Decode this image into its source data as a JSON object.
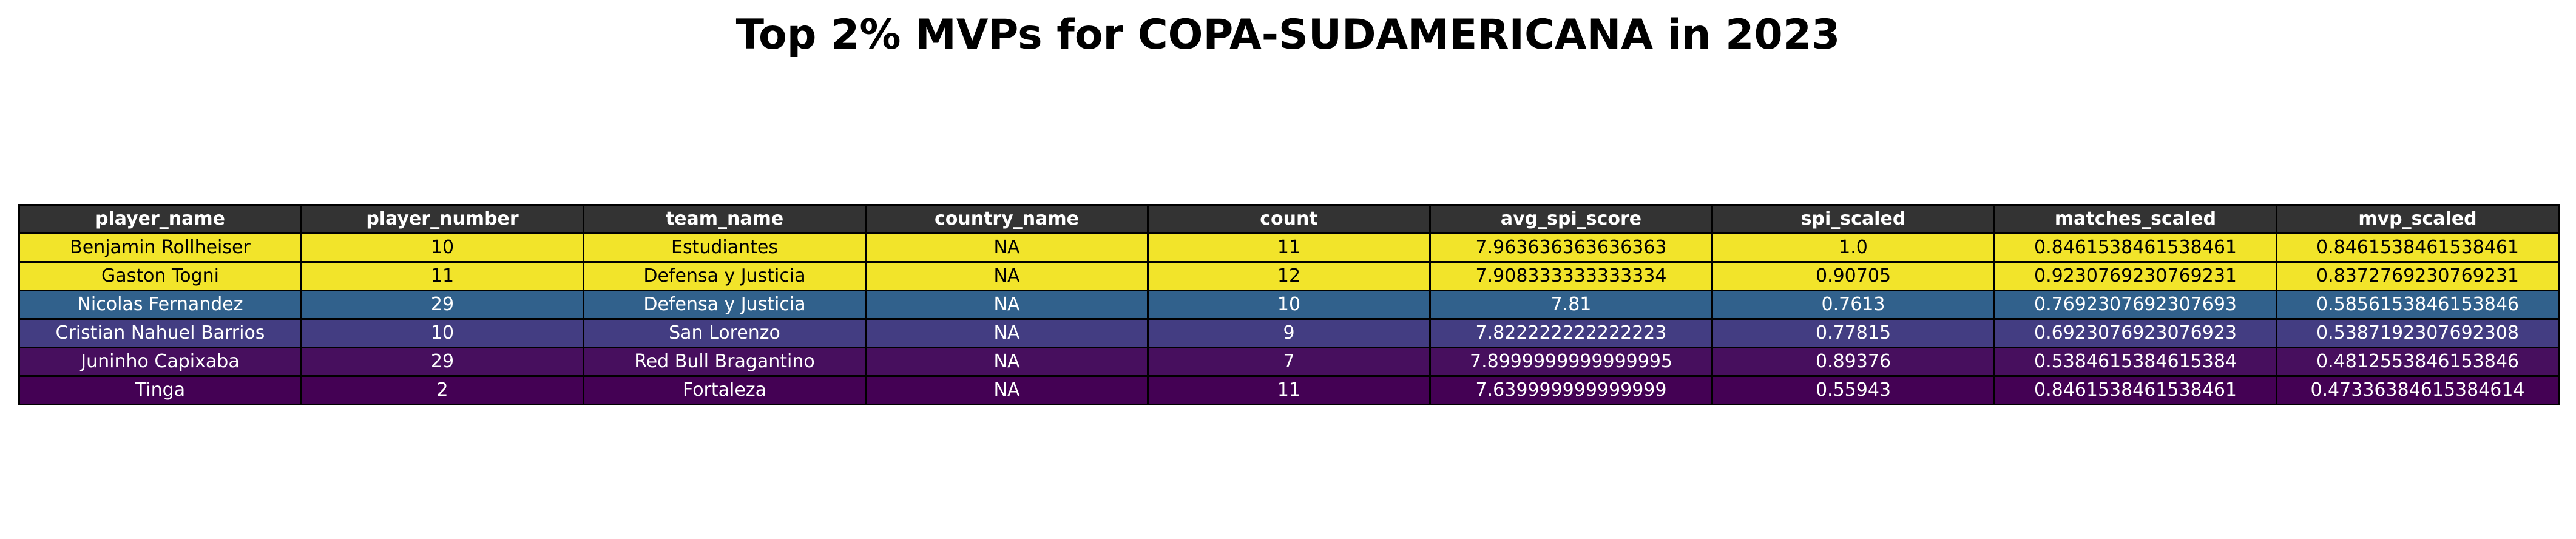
{
  "title": "Top 2% MVPs for COPA-SUDAMERICANA in 2023",
  "chart_data": {
    "type": "table",
    "title": "Top 2% MVPs for COPA-SUDAMERICANA in 2023",
    "columns": [
      "player_name",
      "player_number",
      "team_name",
      "country_name",
      "count",
      "avg_spi_score",
      "spi_scaled",
      "matches_scaled",
      "mvp_scaled"
    ],
    "rows": [
      [
        "Benjamin Rollheiser",
        "10",
        "Estudiantes",
        "NA",
        "11",
        "7.963636363636363",
        "1.0",
        "0.8461538461538461",
        "0.8461538461538461"
      ],
      [
        "Gaston Togni",
        "11",
        "Defensa y Justicia",
        "NA",
        "12",
        "7.908333333333334",
        "0.90705",
        "0.9230769230769231",
        "0.8372769230769231"
      ],
      [
        "Nicolas Fernandez",
        "29",
        "Defensa y Justicia",
        "NA",
        "10",
        "7.81",
        "0.7613",
        "0.7692307692307693",
        "0.5856153846153846"
      ],
      [
        "Cristian Nahuel Barrios",
        "10",
        "San Lorenzo",
        "NA",
        "9",
        "7.822222222222223",
        "0.77815",
        "0.6923076923076923",
        "0.5387192307692308"
      ],
      [
        "Juninho Capixaba",
        "29",
        "Red Bull Bragantino",
        "NA",
        "7",
        "7.8999999999999995",
        "0.89376",
        "0.5384615384615384",
        "0.4812553846153846"
      ],
      [
        "Tinga",
        "2",
        "Fortaleza",
        "NA",
        "11",
        "7.639999999999999",
        "0.55943",
        "0.8461538461538461",
        "0.47336384615384614"
      ]
    ],
    "row_colors": [
      "#f2e42a",
      "#f2e42a",
      "#31618c",
      "#433d82",
      "#470f5e",
      "#440154"
    ],
    "row_text_colors": [
      "#000000",
      "#000000",
      "#ffffff",
      "#ffffff",
      "#ffffff",
      "#ffffff"
    ],
    "header_color": "#333333",
    "header_text_color": "#ffffff"
  }
}
